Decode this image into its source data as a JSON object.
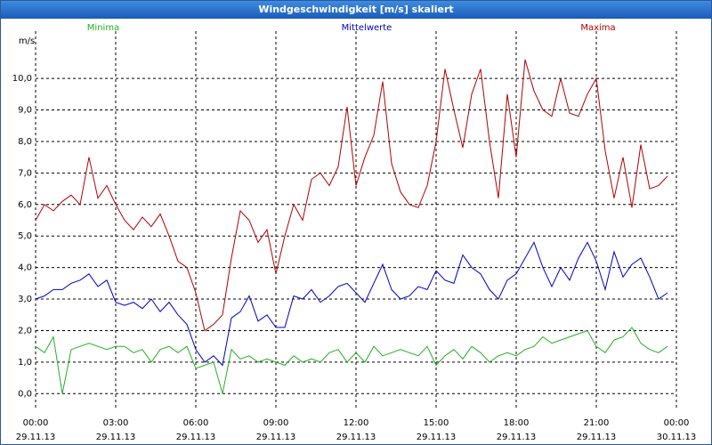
{
  "window_title": "Windgeschwindigkeit [m/s] skaliert",
  "chart_data": {
    "type": "line",
    "y_label": "m/s",
    "x": [
      0,
      20,
      40,
      60,
      80,
      100,
      120,
      140,
      160,
      180,
      200,
      220,
      240,
      260,
      280,
      300,
      320,
      340,
      360,
      380,
      400,
      420,
      440,
      460,
      480,
      500,
      520,
      540,
      560,
      580,
      600,
      620,
      640,
      660,
      680,
      700,
      720,
      740,
      760,
      780,
      800,
      820,
      840,
      860,
      880,
      900,
      920,
      940,
      960,
      980,
      1000,
      1020,
      1040,
      1060,
      1080,
      1100,
      1120,
      1140,
      1160,
      1180,
      1200,
      1220,
      1240,
      1260,
      1280,
      1300,
      1320,
      1340,
      1360,
      1380,
      1400,
      1420
    ],
    "xlim": [
      0,
      1440
    ],
    "xticks": [
      {
        "value": 0,
        "label": "00:00"
      },
      {
        "value": 180,
        "label": "03:00"
      },
      {
        "value": 360,
        "label": "06:00"
      },
      {
        "value": 540,
        "label": "09:00"
      },
      {
        "value": 720,
        "label": "12:00"
      },
      {
        "value": 900,
        "label": "15:00"
      },
      {
        "value": 1080,
        "label": "18:00"
      },
      {
        "value": 1260,
        "label": "21:00"
      },
      {
        "value": 1440,
        "label": "00:00"
      }
    ],
    "xtick_dates": [
      "29.11.13",
      "29.11.13",
      "29.11.13",
      "29.11.13",
      "29.11.13",
      "29.11.13",
      "29.11.13",
      "29.11.13",
      "30.11.13"
    ],
    "ylim": [
      -0.5,
      11.5
    ],
    "yticks": [
      {
        "value": 0,
        "label": "0,0"
      },
      {
        "value": 1,
        "label": "1,0"
      },
      {
        "value": 2,
        "label": "2,0"
      },
      {
        "value": 3,
        "label": "3,0"
      },
      {
        "value": 4,
        "label": "4,0"
      },
      {
        "value": 5,
        "label": "5,0"
      },
      {
        "value": 6,
        "label": "6,0"
      },
      {
        "value": 7,
        "label": "7,0"
      },
      {
        "value": 8,
        "label": "8,0"
      },
      {
        "value": 9,
        "label": "9,0"
      },
      {
        "value": 10,
        "label": "10,0"
      }
    ],
    "grid": true,
    "series": [
      {
        "name": "Minima",
        "color": "#22b022",
        "values": [
          1.5,
          1.3,
          1.8,
          0.0,
          1.4,
          1.5,
          1.6,
          1.5,
          1.4,
          1.5,
          1.5,
          1.3,
          1.4,
          1.0,
          1.4,
          1.5,
          1.3,
          1.5,
          0.8,
          0.9,
          1.0,
          0.0,
          1.4,
          1.1,
          1.2,
          1.0,
          1.1,
          1.0,
          0.9,
          1.2,
          1.0,
          1.1,
          1.0,
          1.3,
          1.4,
          1.0,
          1.3,
          1.0,
          1.5,
          1.2,
          1.3,
          1.4,
          1.3,
          1.2,
          1.5,
          0.9,
          1.2,
          1.4,
          1.1,
          1.5,
          1.3,
          1.0,
          1.2,
          1.3,
          1.2,
          1.4,
          1.5,
          1.8,
          1.6,
          1.7,
          1.8,
          1.9,
          2.0,
          1.5,
          1.3,
          1.7,
          1.8,
          2.1,
          1.6,
          1.4,
          1.3,
          1.5
        ]
      },
      {
        "name": "Mittelwerte",
        "color": "#0000c0",
        "values": [
          3.0,
          3.1,
          3.3,
          3.3,
          3.5,
          3.6,
          3.8,
          3.4,
          3.6,
          2.9,
          2.8,
          2.9,
          2.7,
          3.0,
          2.6,
          2.9,
          2.5,
          2.2,
          1.4,
          1.0,
          1.2,
          0.9,
          2.4,
          2.6,
          3.1,
          2.3,
          2.5,
          2.1,
          2.1,
          3.1,
          3.0,
          3.3,
          2.9,
          3.1,
          3.4,
          3.5,
          3.2,
          2.9,
          3.5,
          4.1,
          3.3,
          3.0,
          3.1,
          3.4,
          3.3,
          3.9,
          3.6,
          3.5,
          4.4,
          4.0,
          3.8,
          3.3,
          3.0,
          3.6,
          3.8,
          4.3,
          4.8,
          4.0,
          3.4,
          4.0,
          3.6,
          4.3,
          4.8,
          4.2,
          3.3,
          4.5,
          3.7,
          4.1,
          4.3,
          3.7,
          3.0,
          3.2
        ]
      },
      {
        "name": "Maxima",
        "color": "#b00000",
        "values": [
          5.5,
          6.0,
          5.8,
          6.1,
          6.3,
          6.0,
          7.5,
          6.2,
          6.6,
          6.0,
          5.5,
          5.2,
          5.6,
          5.3,
          5.7,
          5.0,
          4.2,
          4.0,
          3.2,
          2.0,
          2.2,
          2.5,
          4.3,
          5.8,
          5.5,
          4.8,
          5.2,
          3.8,
          5.0,
          6.0,
          5.5,
          6.8,
          7.0,
          6.6,
          7.2,
          9.1,
          6.6,
          7.5,
          8.2,
          9.9,
          7.3,
          6.4,
          6.0,
          5.9,
          6.6,
          8.0,
          10.3,
          9.0,
          7.8,
          9.5,
          10.3,
          8.0,
          6.2,
          9.5,
          7.5,
          10.6,
          9.6,
          9.0,
          8.8,
          10.0,
          8.9,
          8.8,
          9.5,
          10.0,
          7.7,
          6.2,
          7.5,
          5.9,
          7.9,
          6.5,
          6.6,
          6.9
        ]
      }
    ]
  }
}
